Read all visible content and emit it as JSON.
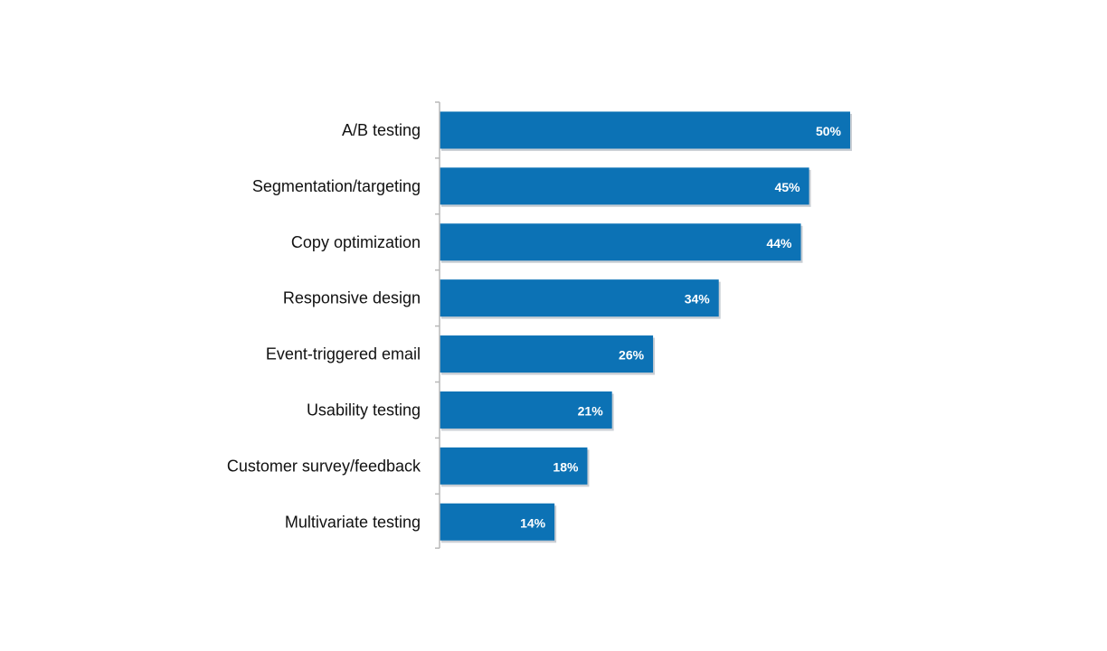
{
  "chart_data": {
    "type": "bar",
    "orientation": "horizontal",
    "title": "",
    "xlabel": "",
    "ylabel": "",
    "xlim": [
      0,
      50
    ],
    "grid": false,
    "legend": "none",
    "unit": "%",
    "categories": [
      "A/B testing",
      "Segmentation/targeting",
      "Copy optimization",
      "Responsive design",
      "Event-triggered email",
      "Usability testing",
      "Customer survey/feedback",
      "Multivariate testing"
    ],
    "values": [
      50,
      45,
      44,
      34,
      26,
      21,
      18,
      14
    ],
    "value_labels": [
      "50%",
      "45%",
      "44%",
      "34%",
      "26%",
      "21%",
      "18%",
      "14%"
    ],
    "colors": {
      "bar": "#0C72B5",
      "bar_shadow": "#BFC6CC",
      "axis": "#B8B8B8",
      "category_text": "#111111",
      "value_text": "#FFFFFF"
    }
  }
}
